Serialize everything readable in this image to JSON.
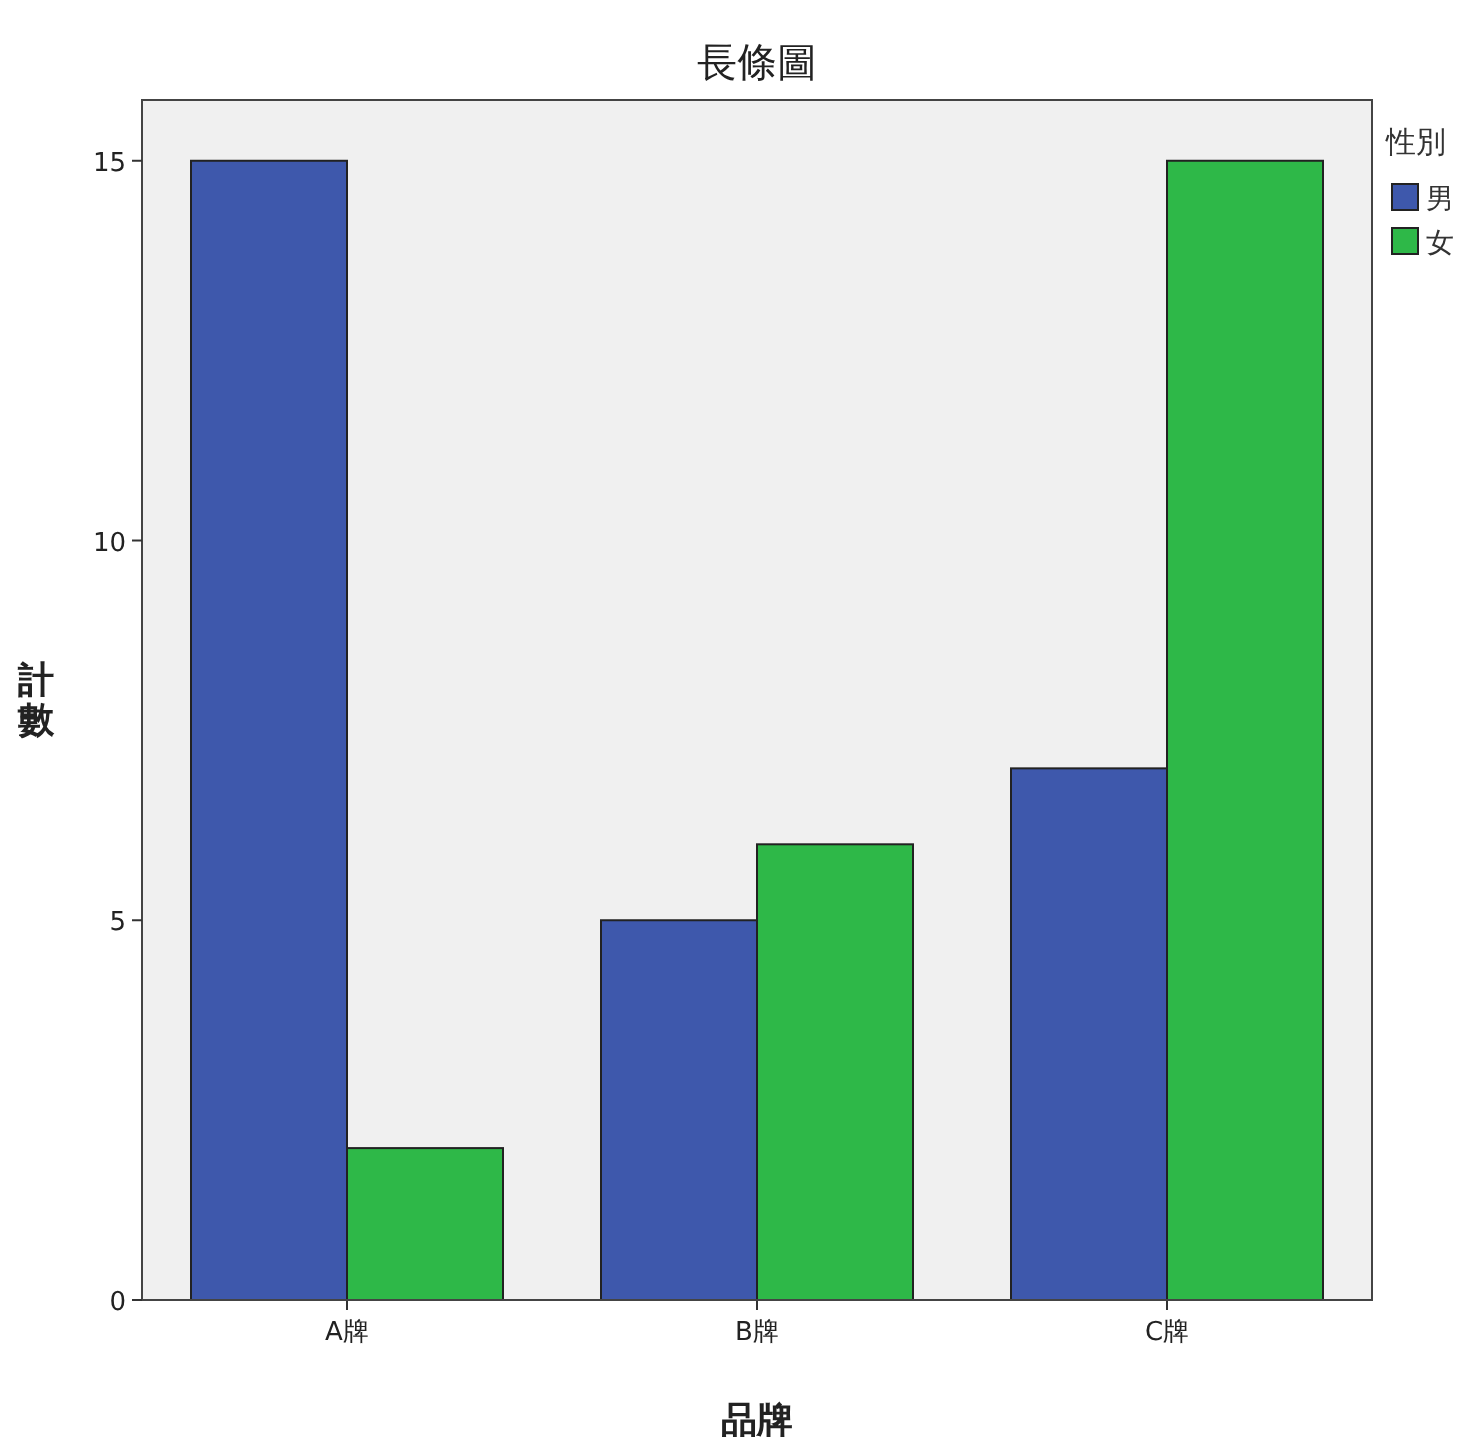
{
  "chart_data": {
    "type": "bar",
    "title": "長條圖",
    "xlabel": "品牌",
    "ylabel": "計數",
    "legend_title": "性別",
    "legend": "right",
    "grid": false,
    "categories": [
      "A牌",
      "B牌",
      "C牌"
    ],
    "series": [
      {
        "name": "男",
        "color": "#3e58ac",
        "values": [
          15,
          5,
          7
        ]
      },
      {
        "name": "女",
        "color": "#2eb848",
        "values": [
          2,
          6,
          15
        ]
      }
    ],
    "ylim": [
      0,
      15.8
    ],
    "yticks": [
      0,
      5,
      10,
      15
    ]
  }
}
